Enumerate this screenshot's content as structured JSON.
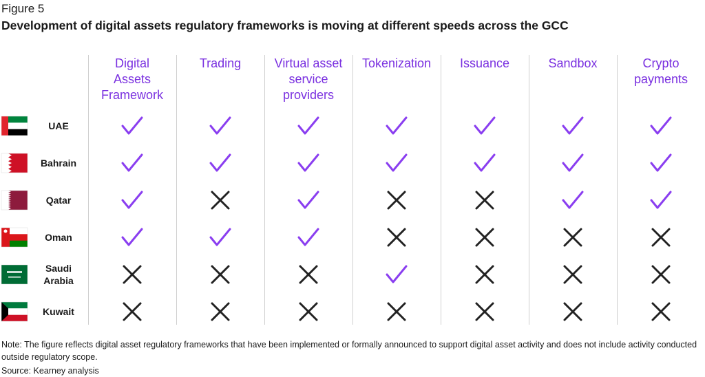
{
  "figure_label": "Figure 5",
  "title": "Development of digital assets regulatory frameworks is moving at different speeds across the GCC",
  "table": {
    "columns": [
      "Digital\nAssets\nFramework",
      "Trading",
      "Virtual asset\nservice\nproviders",
      "Tokenization",
      "Issuance",
      "Sandbox",
      "Crypto\npayments"
    ],
    "rows": [
      {
        "country": "UAE",
        "cells": [
          true,
          true,
          true,
          true,
          true,
          true,
          true
        ]
      },
      {
        "country": "Bahrain",
        "cells": [
          true,
          true,
          true,
          true,
          true,
          true,
          true
        ]
      },
      {
        "country": "Qatar",
        "cells": [
          true,
          false,
          true,
          false,
          false,
          true,
          true
        ]
      },
      {
        "country": "Oman",
        "cells": [
          true,
          true,
          true,
          false,
          false,
          false,
          false
        ]
      },
      {
        "country": "Saudi\nArabia",
        "cells": [
          false,
          false,
          false,
          true,
          false,
          false,
          false
        ]
      },
      {
        "country": "Kuwait",
        "cells": [
          false,
          false,
          false,
          false,
          false,
          false,
          false
        ]
      }
    ]
  },
  "note": "Note: The figure reflects digital asset regulatory frameworks that have been implemented or formally announced to support digital asset activity and does not include activity conducted outside regulatory scope.",
  "source": "Source: Kearney analysis"
}
